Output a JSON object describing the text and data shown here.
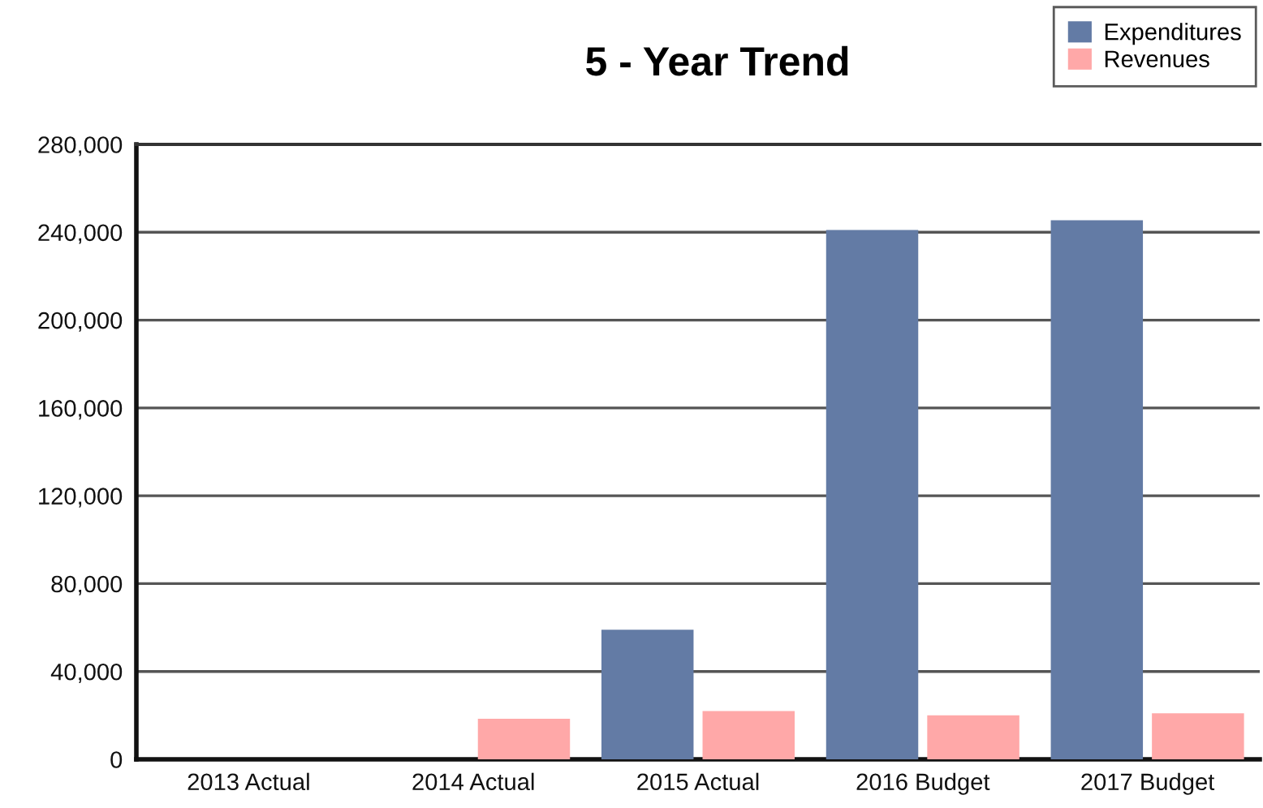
{
  "chart_data": {
    "type": "bar",
    "title": "5 - Year Trend",
    "categories": [
      "2013 Actual",
      "2014 Actual",
      "2015 Actual",
      "2016 Budget",
      "2017 Budget"
    ],
    "series": [
      {
        "name": "Expenditures",
        "color": "#637ba5",
        "values": [
          0,
          0,
          59000,
          241000,
          245500
        ]
      },
      {
        "name": "Revenues",
        "color": "#ffa8a8",
        "values": [
          0,
          18500,
          22000,
          20000,
          21000
        ]
      }
    ],
    "ylim": [
      0,
      280000
    ],
    "yticks": [
      {
        "value": 0,
        "label": "0"
      },
      {
        "value": 40000,
        "label": "40,000"
      },
      {
        "value": 80000,
        "label": "80,000"
      },
      {
        "value": 120000,
        "label": "120,000"
      },
      {
        "value": 160000,
        "label": "160,000"
      },
      {
        "value": 200000,
        "label": "200,000"
      },
      {
        "value": 240000,
        "label": "240,000"
      },
      {
        "value": 280000,
        "label": "280,000"
      }
    ],
    "grid": "y",
    "legend": "top right"
  }
}
